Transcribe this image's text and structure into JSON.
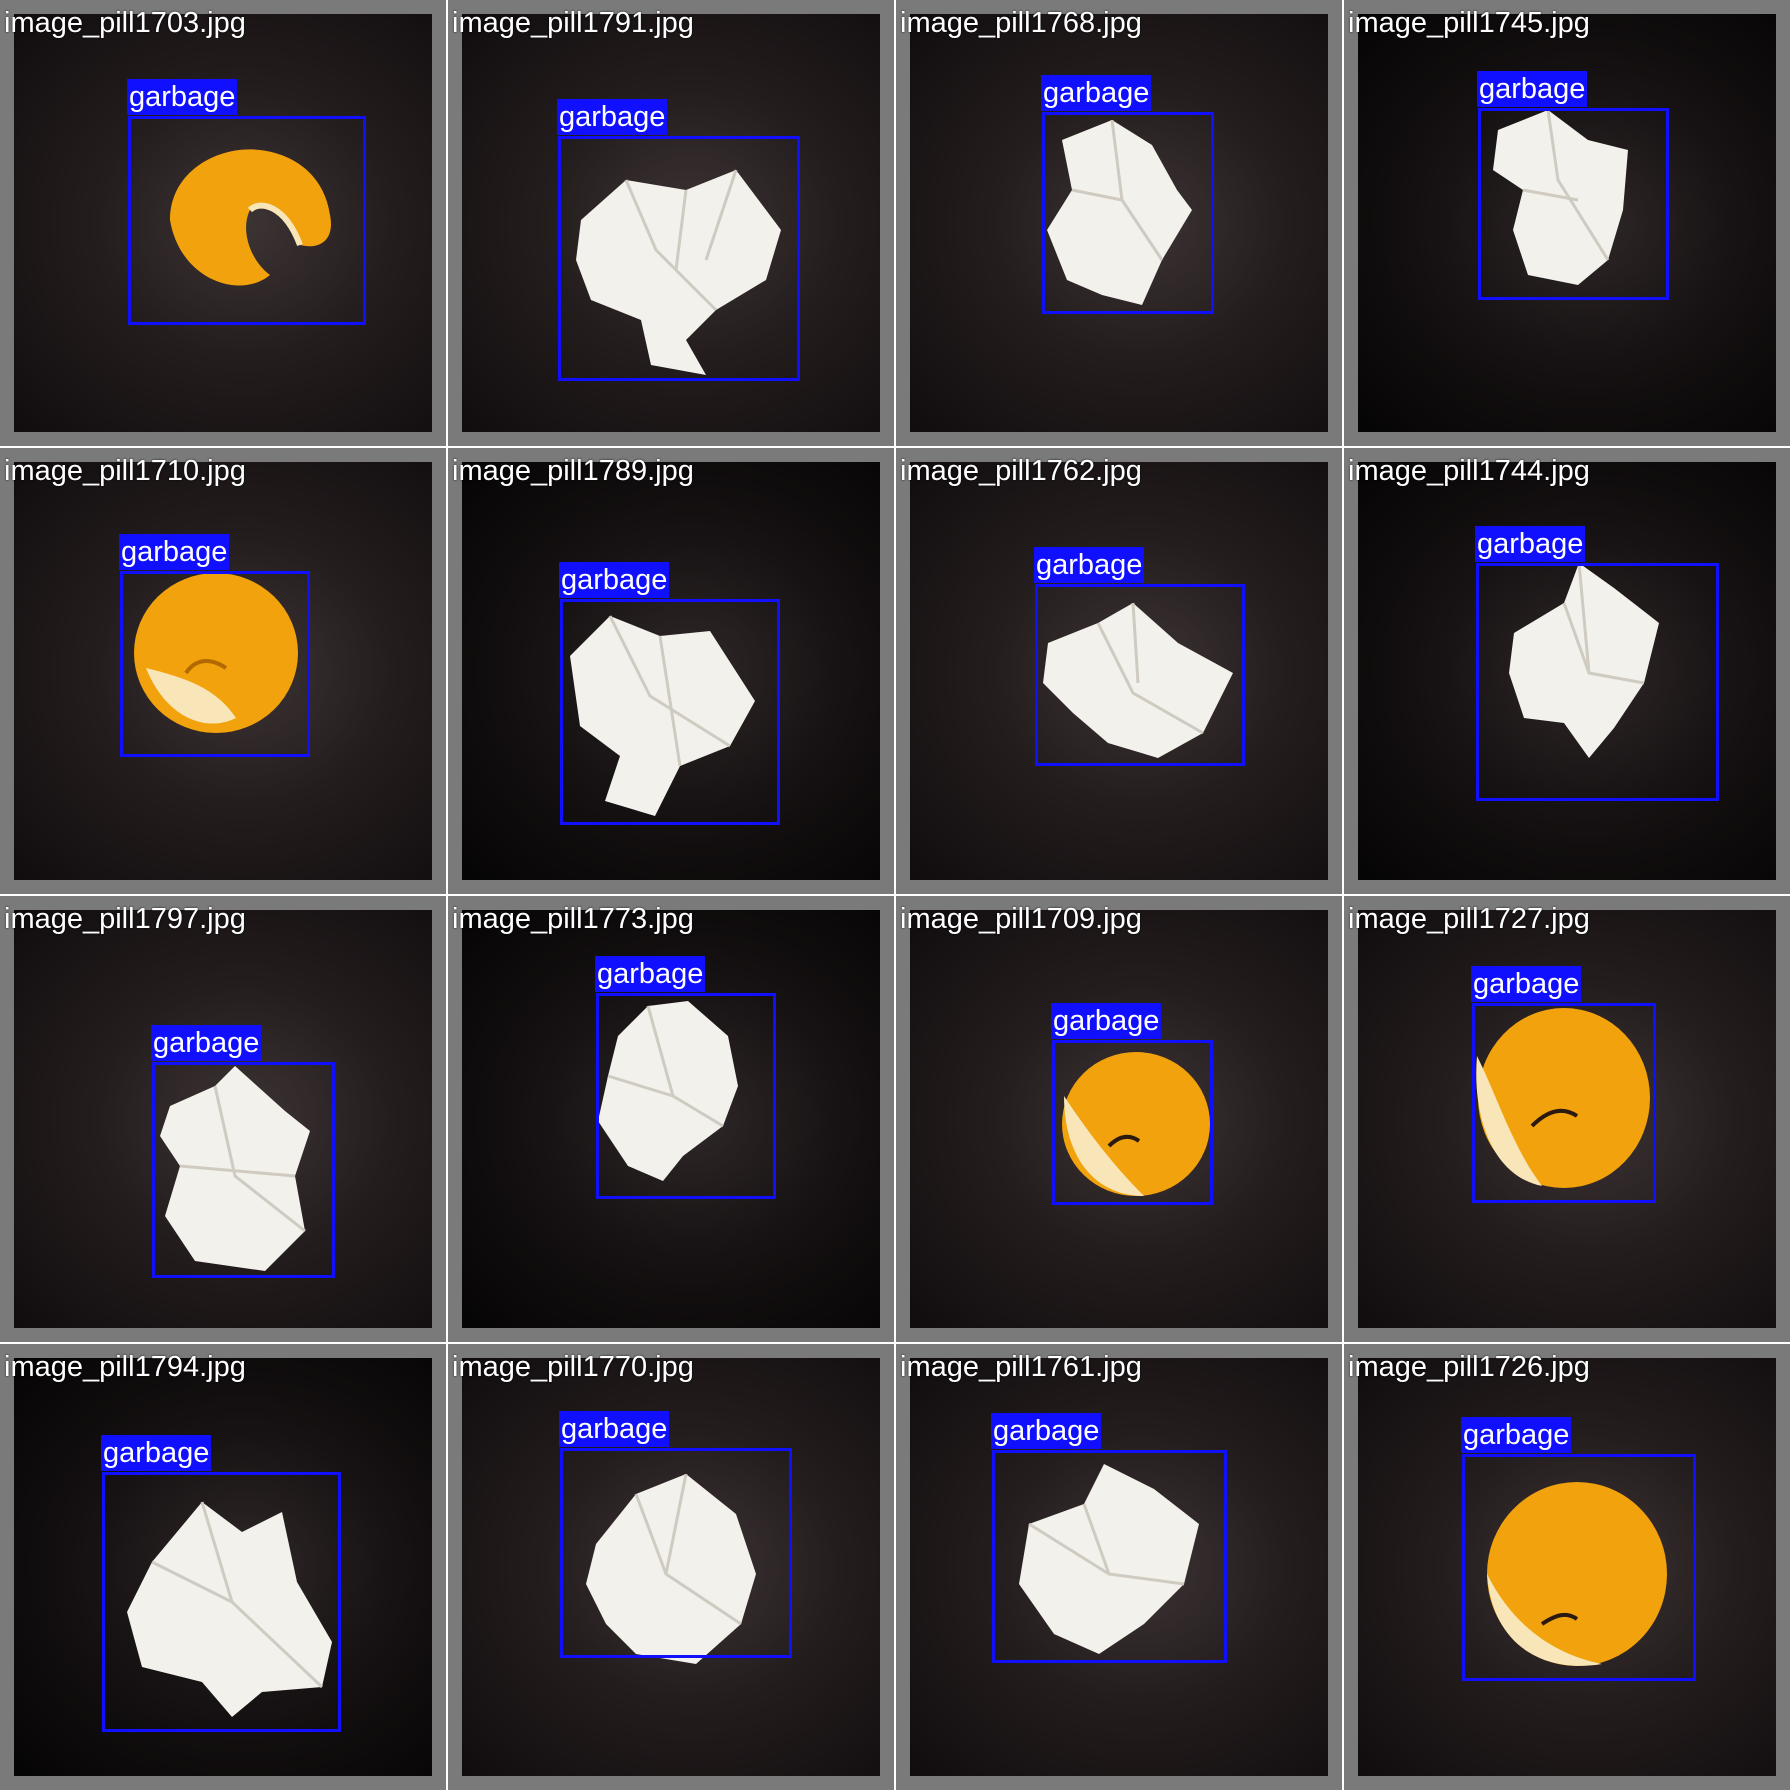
{
  "grid": {
    "tiles": [
      {
        "filename": "image_pill1703.jpg",
        "label": "garbage",
        "object": "orange-peel"
      },
      {
        "filename": "image_pill1791.jpg",
        "label": "garbage",
        "object": "crumpled-paper"
      },
      {
        "filename": "image_pill1768.jpg",
        "label": "garbage",
        "object": "crumpled-paper"
      },
      {
        "filename": "image_pill1745.jpg",
        "label": "garbage",
        "object": "crumpled-paper"
      },
      {
        "filename": "image_pill1710.jpg",
        "label": "garbage",
        "object": "orange-peel"
      },
      {
        "filename": "image_pill1789.jpg",
        "label": "garbage",
        "object": "crumpled-paper"
      },
      {
        "filename": "image_pill1762.jpg",
        "label": "garbage",
        "object": "crumpled-paper"
      },
      {
        "filename": "image_pill1744.jpg",
        "label": "garbage",
        "object": "crumpled-paper"
      },
      {
        "filename": "image_pill1797.jpg",
        "label": "garbage",
        "object": "crumpled-paper"
      },
      {
        "filename": "image_pill1773.jpg",
        "label": "garbage",
        "object": "crumpled-paper"
      },
      {
        "filename": "image_pill1709.jpg",
        "label": "garbage",
        "object": "orange-peel"
      },
      {
        "filename": "image_pill1727.jpg",
        "label": "garbage",
        "object": "orange-peel"
      },
      {
        "filename": "image_pill1794.jpg",
        "label": "garbage",
        "object": "crumpled-paper"
      },
      {
        "filename": "image_pill1770.jpg",
        "label": "garbage",
        "object": "crumpled-paper"
      },
      {
        "filename": "image_pill1761.jpg",
        "label": "garbage",
        "object": "crumpled-paper"
      },
      {
        "filename": "image_pill1726.jpg",
        "label": "garbage",
        "object": "orange-peel"
      }
    ]
  },
  "colors": {
    "box": "#1010ff",
    "tile_border": "#7a7a7a",
    "background": "#1a1415",
    "peel": "#f2a20c",
    "paper": "#f2f1ec"
  }
}
